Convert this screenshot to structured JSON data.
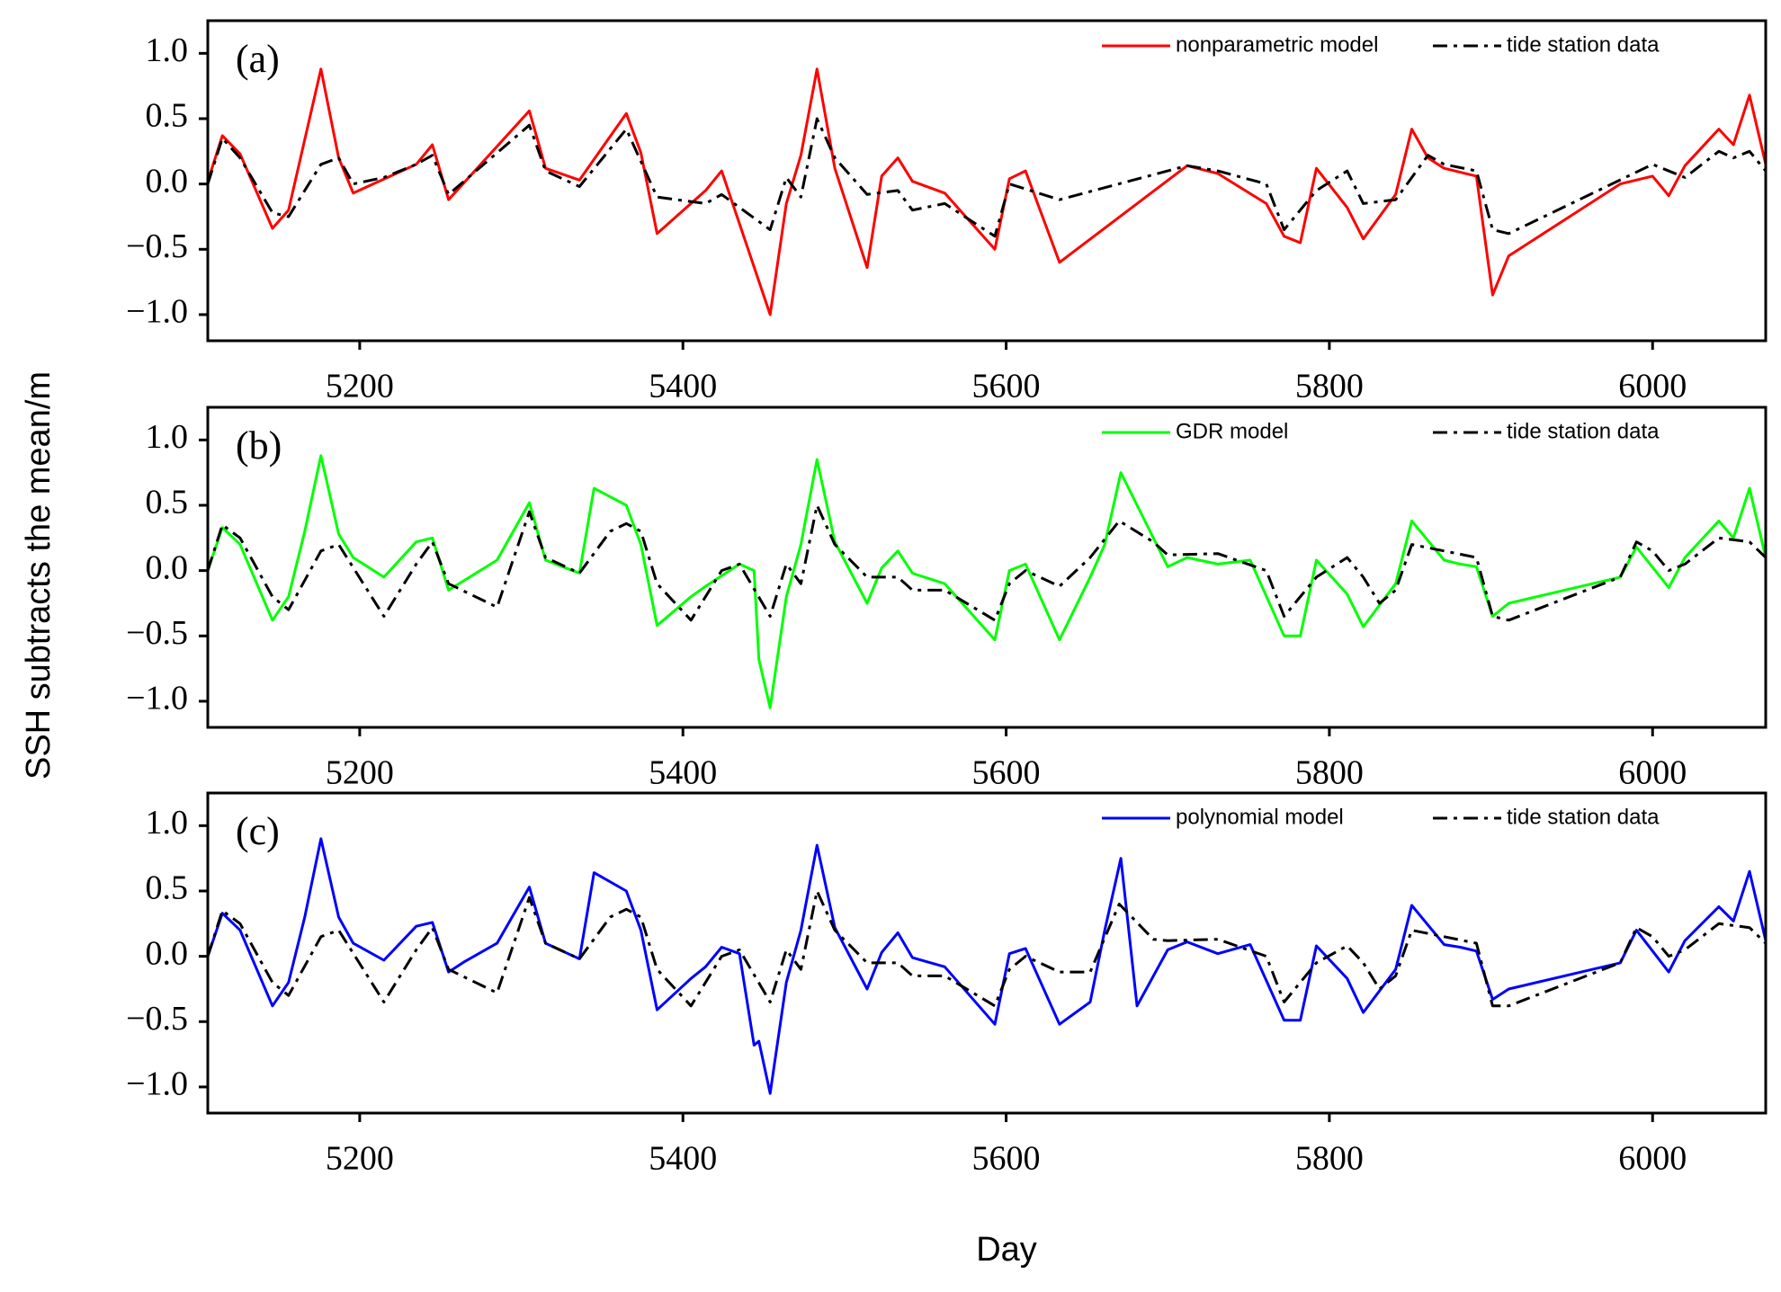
{
  "xlabel": "Day",
  "ylabel": "SSH subtracts the mean/m",
  "chart_data": [
    {
      "type": "line",
      "annotation": "(a)",
      "xlim": [
        5106,
        6070
      ],
      "ylim": [
        -1.2,
        1.25
      ],
      "xticks": [
        5200,
        5400,
        5600,
        5800,
        6000
      ],
      "yticks": [
        {
          "value": 1,
          "label": "1.0"
        },
        0.5,
        {
          "value": 0,
          "label": "0.0"
        },
        {
          "value": -0.5,
          "label": "−0.5"
        },
        {
          "value": -1,
          "label": "−1.0"
        }
      ],
      "series": [
        {
          "name": "nonparametric model",
          "color": "#ff0000",
          "style": "solid",
          "x": [
            5106,
            5115,
            5126,
            5146,
            5156,
            5176,
            5187,
            5196,
            5235,
            5245,
            5255,
            5305,
            5315,
            5336,
            5365,
            5374,
            5384,
            5414,
            5424,
            5454,
            5464,
            5473,
            5483,
            5494,
            5514,
            5523,
            5533,
            5542,
            5562,
            5593,
            5602,
            5612,
            5633,
            5712,
            5731,
            5761,
            5772,
            5782,
            5792,
            5811,
            5821,
            5841,
            5851,
            5861,
            5871,
            5891,
            5901,
            5911,
            5980,
            6000,
            6010,
            6020,
            6041,
            6050,
            6060,
            6070
          ],
          "values": [
            0.02,
            0.37,
            0.23,
            -0.34,
            -0.2,
            0.88,
            0.2,
            -0.07,
            0.15,
            0.3,
            -0.12,
            0.56,
            0.12,
            0.03,
            0.54,
            0.24,
            -0.38,
            -0.05,
            0.1,
            -1.0,
            -0.15,
            0.22,
            0.88,
            0.12,
            -0.64,
            0.06,
            0.2,
            0.02,
            -0.07,
            -0.5,
            0.04,
            0.1,
            -0.6,
            0.14,
            0.08,
            -0.15,
            -0.4,
            -0.45,
            0.12,
            -0.18,
            -0.42,
            -0.08,
            0.42,
            0.2,
            0.12,
            0.06,
            -0.85,
            -0.55,
            0.0,
            0.06,
            -0.09,
            0.14,
            0.42,
            0.3,
            0.68,
            0.15
          ]
        },
        {
          "name": "tide station data",
          "color": "#000000",
          "style": "dashdot",
          "x": [
            5106,
            5115,
            5126,
            5146,
            5156,
            5176,
            5187,
            5196,
            5215,
            5235,
            5245,
            5255,
            5305,
            5315,
            5336,
            5365,
            5384,
            5414,
            5424,
            5454,
            5464,
            5473,
            5483,
            5494,
            5514,
            5533,
            5542,
            5562,
            5593,
            5602,
            5633,
            5712,
            5731,
            5761,
            5772,
            5792,
            5811,
            5821,
            5841,
            5861,
            5871,
            5891,
            5901,
            5911,
            6000,
            6020,
            6041,
            6050,
            6060,
            6070
          ],
          "values": [
            0.0,
            0.35,
            0.2,
            -0.22,
            -0.25,
            0.15,
            0.2,
            0.0,
            0.05,
            0.15,
            0.22,
            -0.08,
            0.45,
            0.1,
            -0.02,
            0.42,
            -0.1,
            -0.15,
            -0.08,
            -0.35,
            0.05,
            -0.1,
            0.5,
            0.2,
            -0.08,
            -0.05,
            -0.2,
            -0.15,
            -0.4,
            0.0,
            -0.12,
            0.14,
            0.1,
            0.0,
            -0.35,
            -0.05,
            0.1,
            -0.15,
            -0.12,
            0.22,
            0.15,
            0.1,
            -0.35,
            -0.38,
            0.15,
            0.05,
            0.25,
            0.2,
            0.25,
            0.1
          ]
        }
      ]
    },
    {
      "type": "line",
      "annotation": "(b)",
      "xlim": [
        5106,
        6070
      ],
      "ylim": [
        -1.2,
        1.25
      ],
      "xticks": [
        5200,
        5400,
        5600,
        5800,
        6000
      ],
      "yticks": [
        {
          "value": 1,
          "label": "1.0"
        },
        0.5,
        {
          "value": 0,
          "label": "0.0"
        },
        {
          "value": -0.5,
          "label": "−0.5"
        },
        {
          "value": -1,
          "label": "−1.0"
        }
      ],
      "series": [
        {
          "name": "GDR model",
          "color": "#00ff00",
          "style": "solid",
          "x": [
            5106,
            5115,
            5126,
            5146,
            5156,
            5166,
            5176,
            5187,
            5196,
            5215,
            5235,
            5245,
            5255,
            5285,
            5305,
            5315,
            5336,
            5345,
            5365,
            5374,
            5384,
            5405,
            5414,
            5435,
            5444,
            5447,
            5454,
            5464,
            5473,
            5483,
            5494,
            5514,
            5523,
            5533,
            5542,
            5562,
            5593,
            5602,
            5612,
            5633,
            5652,
            5661,
            5671,
            5700,
            5712,
            5731,
            5751,
            5772,
            5782,
            5792,
            5811,
            5821,
            5841,
            5851,
            5871,
            5881,
            5891,
            5901,
            5911,
            5980,
            5990,
            6010,
            6020,
            6041,
            6050,
            6060,
            6070
          ],
          "values": [
            0.0,
            0.33,
            0.2,
            -0.38,
            -0.2,
            0.3,
            0.88,
            0.28,
            0.1,
            -0.05,
            0.22,
            0.25,
            -0.15,
            0.08,
            0.52,
            0.08,
            -0.02,
            0.63,
            0.5,
            0.2,
            -0.42,
            -0.2,
            -0.12,
            0.05,
            0.0,
            -0.68,
            -1.05,
            -0.2,
            0.2,
            0.85,
            0.22,
            -0.25,
            0.02,
            0.15,
            -0.02,
            -0.1,
            -0.53,
            0.0,
            0.05,
            -0.53,
            -0.05,
            0.2,
            0.75,
            0.03,
            0.1,
            0.05,
            0.08,
            -0.5,
            -0.5,
            0.08,
            -0.18,
            -0.43,
            -0.1,
            0.38,
            0.08,
            0.05,
            0.03,
            -0.35,
            -0.25,
            -0.05,
            0.18,
            -0.13,
            0.1,
            0.38,
            0.25,
            0.63,
            0.1
          ]
        },
        {
          "name": "tide station data",
          "color": "#000000",
          "style": "dashdot",
          "x": [
            5106,
            5115,
            5126,
            5146,
            5156,
            5176,
            5187,
            5215,
            5235,
            5245,
            5255,
            5285,
            5305,
            5315,
            5336,
            5355,
            5365,
            5374,
            5384,
            5405,
            5424,
            5435,
            5454,
            5464,
            5473,
            5483,
            5494,
            5514,
            5533,
            5542,
            5562,
            5593,
            5602,
            5612,
            5633,
            5652,
            5670,
            5691,
            5700,
            5731,
            5761,
            5772,
            5792,
            5811,
            5821,
            5831,
            5841,
            5851,
            5871,
            5891,
            5901,
            5911,
            5980,
            5990,
            6000,
            6010,
            6020,
            6041,
            6060,
            6070
          ],
          "values": [
            0.0,
            0.35,
            0.25,
            -0.2,
            -0.3,
            0.15,
            0.2,
            -0.35,
            0.05,
            0.22,
            -0.1,
            -0.28,
            0.45,
            0.1,
            -0.02,
            0.3,
            0.36,
            0.3,
            -0.1,
            -0.38,
            0.0,
            0.05,
            -0.35,
            0.05,
            -0.1,
            0.5,
            0.2,
            -0.05,
            -0.05,
            -0.15,
            -0.15,
            -0.38,
            -0.1,
            0.0,
            -0.12,
            0.1,
            0.38,
            0.22,
            0.12,
            0.13,
            0.0,
            -0.35,
            -0.05,
            0.1,
            -0.05,
            -0.25,
            -0.15,
            0.2,
            0.15,
            0.1,
            -0.35,
            -0.38,
            -0.05,
            0.22,
            0.15,
            0.0,
            0.05,
            0.25,
            0.22,
            0.1
          ]
        }
      ]
    },
    {
      "type": "line",
      "annotation": "(c)",
      "xlim": [
        5106,
        6070
      ],
      "ylim": [
        -1.2,
        1.25
      ],
      "xticks": [
        5200,
        5400,
        5600,
        5800,
        6000
      ],
      "yticks": [
        {
          "value": 1,
          "label": "1.0"
        },
        0.5,
        {
          "value": 0,
          "label": "0.0"
        },
        {
          "value": -0.5,
          "label": "−0.5"
        },
        {
          "value": -1,
          "label": "−1.0"
        }
      ],
      "series": [
        {
          "name": "polynomial model",
          "color": "#0000ff",
          "style": "solid",
          "x": [
            5106,
            5115,
            5126,
            5146,
            5156,
            5166,
            5176,
            5187,
            5196,
            5215,
            5235,
            5245,
            5255,
            5265,
            5285,
            5305,
            5315,
            5336,
            5345,
            5365,
            5374,
            5384,
            5405,
            5414,
            5424,
            5435,
            5444,
            5447,
            5454,
            5464,
            5473,
            5483,
            5494,
            5514,
            5523,
            5533,
            5542,
            5562,
            5593,
            5602,
            5612,
            5633,
            5652,
            5661,
            5671,
            5681,
            5700,
            5712,
            5731,
            5751,
            5772,
            5782,
            5792,
            5811,
            5821,
            5841,
            5851,
            5871,
            5881,
            5891,
            5901,
            5911,
            5980,
            5990,
            6010,
            6020,
            6041,
            6050,
            6060,
            6070
          ],
          "values": [
            0.0,
            0.33,
            0.2,
            -0.38,
            -0.2,
            0.3,
            0.9,
            0.3,
            0.1,
            -0.03,
            0.23,
            0.26,
            -0.12,
            -0.04,
            0.1,
            0.53,
            0.1,
            -0.02,
            0.64,
            0.5,
            0.2,
            -0.41,
            -0.17,
            -0.08,
            0.07,
            0.02,
            -0.68,
            -0.65,
            -1.05,
            -0.2,
            0.2,
            0.85,
            0.22,
            -0.25,
            0.03,
            0.18,
            -0.01,
            -0.08,
            -0.52,
            0.02,
            0.06,
            -0.52,
            -0.35,
            0.2,
            0.75,
            -0.38,
            0.05,
            0.11,
            0.02,
            0.09,
            -0.49,
            -0.49,
            0.08,
            -0.17,
            -0.43,
            -0.1,
            0.39,
            0.09,
            0.07,
            0.04,
            -0.33,
            -0.25,
            -0.05,
            0.2,
            -0.12,
            0.12,
            0.38,
            0.27,
            0.65,
            0.12
          ]
        },
        {
          "name": "tide station data",
          "color": "#000000",
          "style": "dashdot",
          "x": [
            5106,
            5115,
            5126,
            5146,
            5156,
            5176,
            5187,
            5215,
            5235,
            5245,
            5255,
            5285,
            5305,
            5315,
            5336,
            5355,
            5365,
            5374,
            5384,
            5405,
            5424,
            5435,
            5454,
            5464,
            5473,
            5483,
            5494,
            5514,
            5533,
            5542,
            5562,
            5593,
            5602,
            5612,
            5633,
            5652,
            5670,
            5691,
            5700,
            5731,
            5761,
            5772,
            5792,
            5811,
            5821,
            5831,
            5841,
            5851,
            5871,
            5891,
            5901,
            5911,
            5980,
            5990,
            6000,
            6010,
            6020,
            6041,
            6060,
            6070
          ],
          "values": [
            0.0,
            0.35,
            0.25,
            -0.2,
            -0.3,
            0.15,
            0.2,
            -0.35,
            0.05,
            0.22,
            -0.1,
            -0.28,
            0.45,
            0.1,
            -0.02,
            0.3,
            0.36,
            0.3,
            -0.1,
            -0.38,
            0.0,
            0.05,
            -0.35,
            0.05,
            -0.1,
            0.5,
            0.2,
            -0.05,
            -0.05,
            -0.15,
            -0.15,
            -0.38,
            -0.1,
            0.0,
            -0.12,
            -0.12,
            0.4,
            0.13,
            0.12,
            0.13,
            0.0,
            -0.35,
            -0.05,
            0.08,
            -0.05,
            -0.25,
            -0.15,
            0.2,
            0.15,
            0.1,
            -0.38,
            -0.38,
            -0.05,
            0.22,
            0.15,
            0.0,
            0.05,
            0.25,
            0.22,
            0.1
          ]
        }
      ]
    }
  ]
}
